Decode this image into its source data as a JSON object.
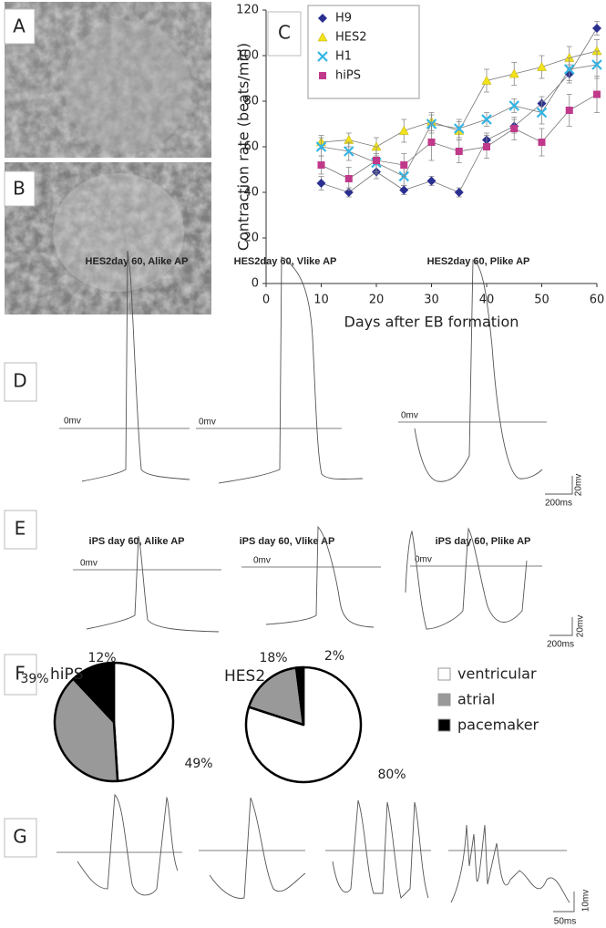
{
  "panel_labels": [
    "A",
    "B",
    "C",
    "D",
    "E",
    "F",
    "G"
  ],
  "chart_data": [
    {
      "type": "line",
      "x_label": "Days after EB formation",
      "y_label": "Contraction rate (beats/min)",
      "x": [
        10,
        15,
        20,
        25,
        30,
        35,
        40,
        45,
        50,
        55,
        60
      ],
      "series": [
        {
          "name": "H9",
          "color": "#2b2f8f",
          "marker": "diamond",
          "values": [
            44,
            40,
            49,
            41,
            45,
            40,
            63,
            69,
            79,
            92,
            112
          ],
          "errors": [
            3,
            2,
            3,
            2,
            2,
            2,
            3,
            3,
            3,
            4,
            3
          ]
        },
        {
          "name": "HES2",
          "color": "#f2e21c",
          "marker": "triangle",
          "values": [
            62,
            63,
            60,
            67,
            71,
            67,
            89,
            92,
            95,
            99,
            102
          ],
          "errors": [
            3,
            3,
            4,
            5,
            4,
            4,
            5,
            5,
            5,
            5,
            5
          ]
        },
        {
          "name": "H1",
          "color": "#33b5e5",
          "marker": "cross",
          "values": [
            60,
            58,
            53,
            47,
            70,
            68,
            72,
            78,
            75,
            94,
            96
          ],
          "errors": [
            4,
            4,
            4,
            4,
            4,
            4,
            3,
            3,
            5,
            5,
            6
          ]
        },
        {
          "name": "hiPS",
          "color": "#c0398b",
          "marker": "square",
          "values": [
            52,
            46,
            54,
            52,
            62,
            58,
            60,
            68,
            62,
            76,
            83
          ],
          "errors": [
            4,
            5,
            6,
            5,
            8,
            5,
            5,
            5,
            6,
            7,
            8
          ]
        }
      ],
      "xlim": [
        0,
        60
      ],
      "xticks": [
        0,
        10,
        20,
        30,
        40,
        50,
        60
      ],
      "ylim": [
        0,
        120
      ],
      "yticks": [
        0,
        20,
        40,
        60,
        80,
        100,
        120
      ]
    },
    {
      "type": "pie",
      "title": "hiPS",
      "categories": [
        "ventricular",
        "atrial",
        "pacemaker"
      ],
      "values": [
        49,
        39,
        12
      ],
      "value_labels": [
        "49%",
        "39%",
        "12%"
      ],
      "colors": [
        "#ffffff",
        "#999999",
        "#000000"
      ]
    },
    {
      "type": "pie",
      "title": "HES2",
      "values": [
        80,
        18,
        2
      ],
      "value_labels": [
        "80%",
        "18%",
        "2%"
      ],
      "colors": [
        "#ffffff",
        "#999999",
        "#000000"
      ]
    }
  ],
  "traces": {
    "D": {
      "titles": [
        "HES2day 60, Alike AP",
        "HES2day 60, Vlike AP",
        "HES2day 60, Plike AP"
      ],
      "zero_labels": [
        "0mv",
        "0mv",
        "0mv"
      ],
      "scale": [
        "20mv",
        "200ms"
      ]
    },
    "E": {
      "titles": [
        "iPS day 60, Alike AP",
        "iPS day 60, Vlike AP",
        "iPS day 60, Plike AP"
      ],
      "zero_labels": [
        "0mv",
        "0mv",
        "0mv"
      ],
      "scale": [
        "20mv",
        "200ms"
      ]
    },
    "G": {
      "scale": [
        "10mv",
        "50ms"
      ]
    }
  }
}
